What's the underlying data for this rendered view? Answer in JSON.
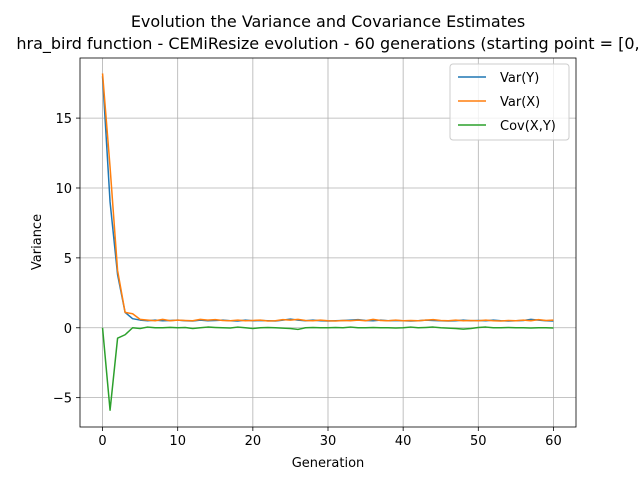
{
  "chart_data": {
    "type": "line",
    "title": "Evolution the Variance and Covariance Estimates",
    "subtitle": "hra_bird function - CEMiResize evolution - 60 generations (starting point = [0,",
    "xlabel": "Generation",
    "ylabel": "Variance",
    "xlim": [
      -3,
      63
    ],
    "ylim": [
      -7.1,
      19.3
    ],
    "xticks": [
      0,
      10,
      20,
      30,
      40,
      50,
      60
    ],
    "yticks": [
      -5,
      0,
      5,
      10,
      15
    ],
    "xtick_labels": [
      "0",
      "10",
      "20",
      "30",
      "40",
      "50",
      "60"
    ],
    "ytick_labels": [
      "−5",
      "0",
      "5",
      "10",
      "15"
    ],
    "grid": true,
    "legend_position": "top-right",
    "x": [
      0,
      1,
      2,
      3,
      4,
      5,
      6,
      7,
      8,
      9,
      10,
      11,
      12,
      13,
      14,
      15,
      16,
      17,
      18,
      19,
      20,
      21,
      22,
      23,
      24,
      25,
      26,
      27,
      28,
      29,
      30,
      31,
      32,
      33,
      34,
      35,
      36,
      37,
      38,
      39,
      40,
      41,
      42,
      43,
      44,
      45,
      46,
      47,
      48,
      49,
      50,
      51,
      52,
      53,
      54,
      55,
      56,
      57,
      58,
      59,
      60
    ],
    "series": [
      {
        "name": "Var(Y)",
        "color": "#1f77b4",
        "values": [
          18.0,
          9.0,
          3.8,
          1.1,
          0.65,
          0.55,
          0.5,
          0.55,
          0.5,
          0.52,
          0.55,
          0.5,
          0.48,
          0.55,
          0.5,
          0.52,
          0.55,
          0.5,
          0.48,
          0.55,
          0.5,
          0.52,
          0.5,
          0.48,
          0.55,
          0.62,
          0.55,
          0.5,
          0.55,
          0.5,
          0.48,
          0.5,
          0.52,
          0.55,
          0.58,
          0.52,
          0.5,
          0.55,
          0.5,
          0.52,
          0.5,
          0.48,
          0.5,
          0.55,
          0.52,
          0.5,
          0.48,
          0.5,
          0.55,
          0.5,
          0.52,
          0.5,
          0.55,
          0.5,
          0.48,
          0.5,
          0.52,
          0.6,
          0.55,
          0.5,
          0.48
        ]
      },
      {
        "name": "Var(X)",
        "color": "#ff7f0e",
        "values": [
          18.2,
          11.5,
          4.1,
          1.1,
          1.0,
          0.6,
          0.55,
          0.5,
          0.6,
          0.5,
          0.55,
          0.52,
          0.5,
          0.6,
          0.55,
          0.58,
          0.52,
          0.5,
          0.55,
          0.5,
          0.52,
          0.55,
          0.48,
          0.5,
          0.58,
          0.55,
          0.6,
          0.52,
          0.5,
          0.55,
          0.5,
          0.48,
          0.52,
          0.5,
          0.55,
          0.5,
          0.6,
          0.52,
          0.5,
          0.55,
          0.5,
          0.52,
          0.5,
          0.55,
          0.58,
          0.52,
          0.5,
          0.55,
          0.5,
          0.52,
          0.5,
          0.55,
          0.5,
          0.48,
          0.52,
          0.5,
          0.55,
          0.5,
          0.58,
          0.52,
          0.55
        ]
      },
      {
        "name": "Cov(X,Y)",
        "color": "#2ca02c",
        "values": [
          0.0,
          -5.9,
          -0.75,
          -0.5,
          0.0,
          -0.05,
          0.05,
          0.0,
          0.0,
          0.03,
          0.0,
          0.02,
          -0.05,
          0.0,
          0.05,
          0.02,
          0.0,
          -0.02,
          0.05,
          0.0,
          -0.05,
          0.0,
          0.02,
          0.0,
          -0.03,
          -0.05,
          -0.12,
          0.0,
          0.02,
          0.0,
          0.0,
          0.02,
          0.0,
          0.05,
          0.0,
          0.0,
          0.02,
          0.0,
          0.0,
          -0.02,
          0.0,
          0.05,
          0.0,
          0.02,
          0.05,
          0.0,
          -0.03,
          -0.05,
          -0.1,
          -0.05,
          0.02,
          0.05,
          0.0,
          0.0,
          0.02,
          0.0,
          0.0,
          -0.02,
          0.0,
          0.0,
          -0.02
        ]
      }
    ]
  }
}
